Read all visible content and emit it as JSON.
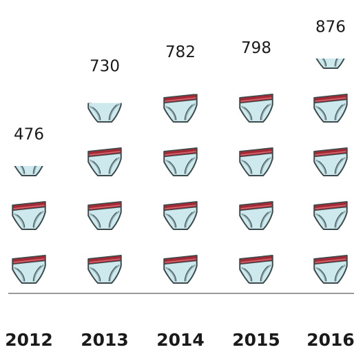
{
  "chart_data": {
    "type": "bar",
    "subtype": "pictograph",
    "icon": "briefs-underwear-icon",
    "categories": [
      "2012",
      "2013",
      "2014",
      "2015",
      "2016"
    ],
    "values": [
      476,
      730,
      782,
      798,
      876
    ],
    "units_per_icon": 200,
    "data_labels": [
      "476",
      "730",
      "782",
      "798",
      "876"
    ],
    "title": "",
    "xlabel": "",
    "ylabel": "",
    "ylim": [
      0,
      1000
    ],
    "grid": false,
    "legend": "none"
  },
  "colors": {
    "icon_fill": "#cde9ee",
    "icon_outline": "#3c4a4c",
    "waistband": "#a32a35",
    "waistband_light": "#d86a74",
    "leg_trim": "#8aa6aa",
    "baseline": "#9a9a9a",
    "text": "#1a1a1a"
  }
}
